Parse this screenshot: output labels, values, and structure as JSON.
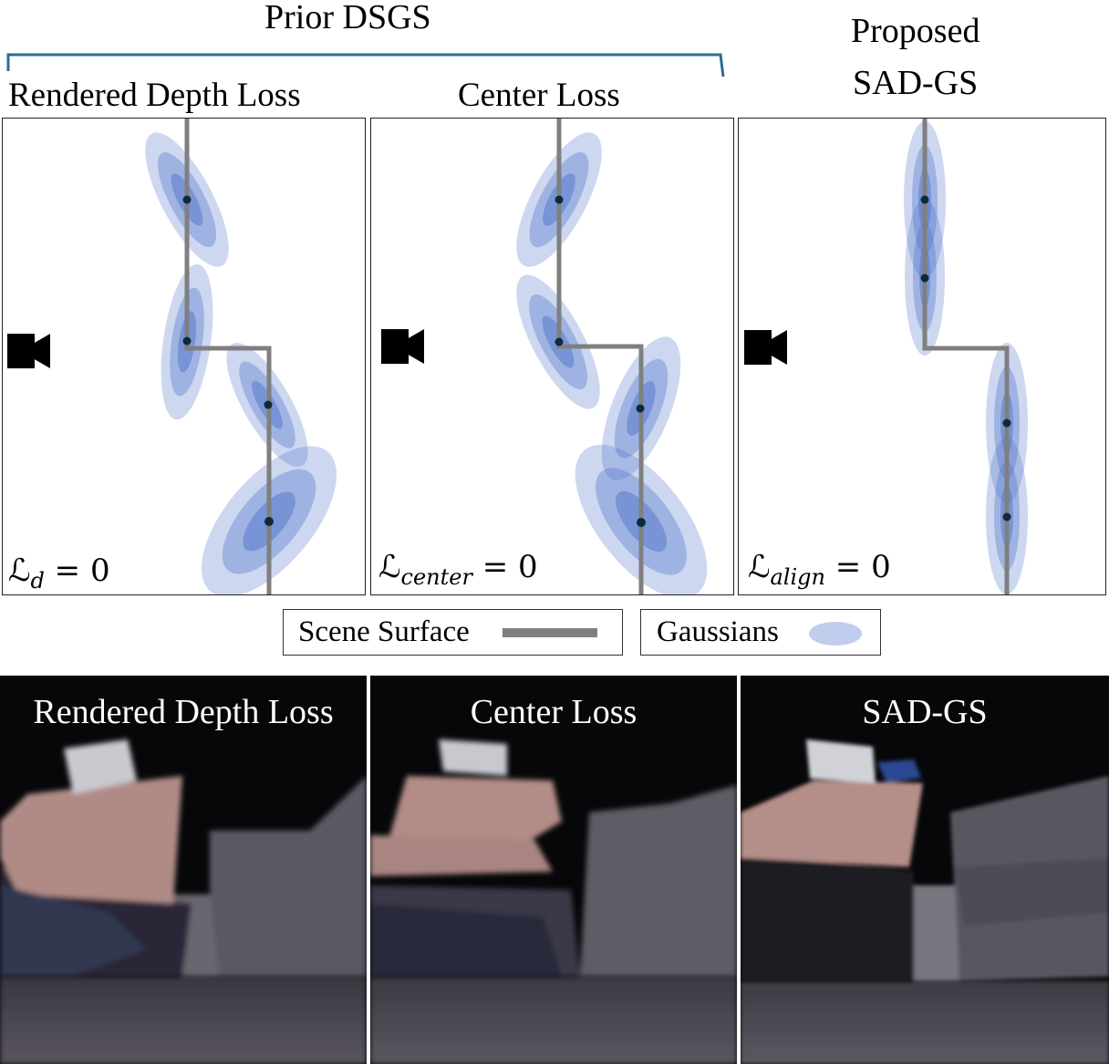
{
  "header": {
    "group_label": "Prior DSGS",
    "proposed_label": "Proposed\nSAD-GS",
    "proposed_line1": "Proposed",
    "proposed_line2": "SAD-GS"
  },
  "panels": [
    {
      "title": "Rendered Depth Loss",
      "loss_symbol": "ℒ",
      "loss_sub": "d",
      "loss_rest": " = 0"
    },
    {
      "title": "Center Loss",
      "loss_symbol": "ℒ",
      "loss_sub": "center",
      "loss_rest": " = 0"
    },
    {
      "title": "",
      "loss_symbol": "ℒ",
      "loss_sub": "align",
      "loss_rest": " = 0"
    }
  ],
  "legend": {
    "surface_label": "Scene Surface",
    "gaussians_label": "Gaussians"
  },
  "renders": [
    {
      "label": "Rendered Depth Loss"
    },
    {
      "label": "Center Loss"
    },
    {
      "label": "SAD-GS"
    }
  ],
  "colors": {
    "bracket": "#2a6e8c",
    "surface": "#7f7f7f",
    "gaussian": "#4a6fc8",
    "center_dot": "#0d2a3a"
  }
}
